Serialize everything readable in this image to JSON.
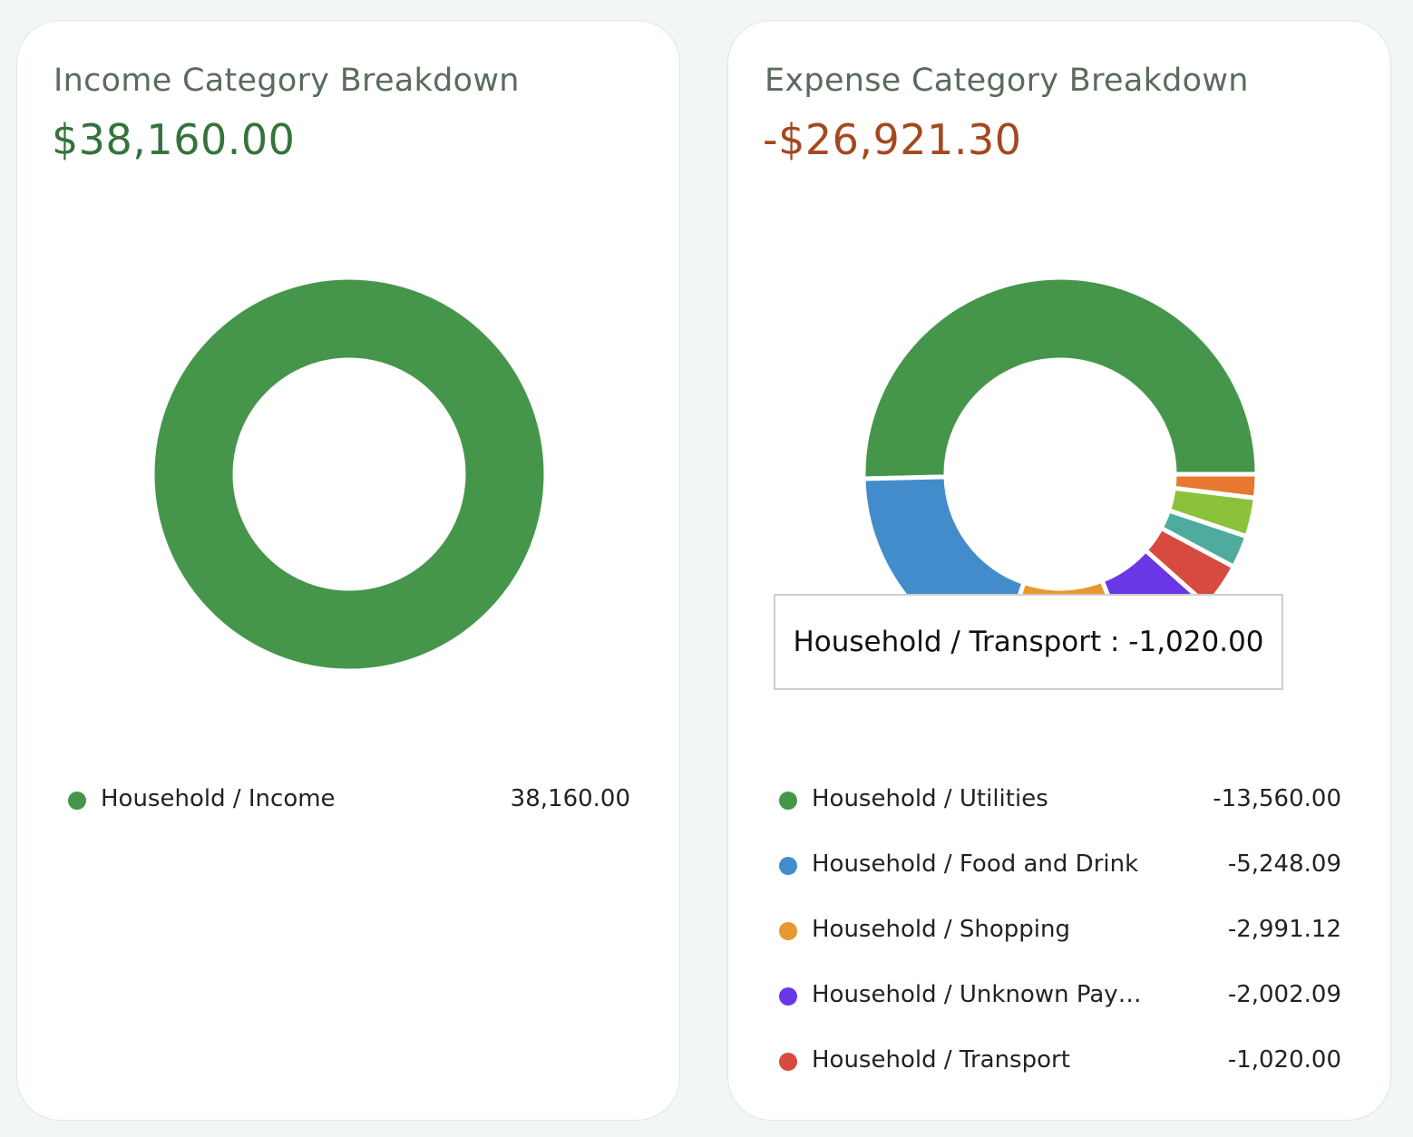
{
  "income": {
    "title": "Income Category Breakdown",
    "total": "$38,160.00",
    "total_color": "#35733c"
  },
  "expense": {
    "title": "Expense Category Breakdown",
    "total": "-$26,921.30",
    "total_color": "#a4481e",
    "tooltip": "Household / Transport : -1,020.00"
  },
  "chart_data": [
    {
      "type": "pie",
      "donut": true,
      "title": "Income Category Breakdown",
      "total": "$38,160.00",
      "categories": [
        "Household / Income"
      ],
      "values": [
        38160.0
      ],
      "value_labels": [
        "38,160.00"
      ],
      "colors": [
        "#45964a"
      ]
    },
    {
      "type": "pie",
      "donut": true,
      "title": "Expense Category Breakdown",
      "total": "-$26,921.30",
      "categories": [
        "Household / Utilities",
        "Household / Food and Drink",
        "Household / Shopping",
        "Household / Unknown Pay…",
        "Household / Transport",
        "",
        "",
        ""
      ],
      "values": [
        -13560.0,
        -5248.09,
        -2991.12,
        -2002.09,
        -1020.0,
        -720,
        -860,
        -520
      ],
      "value_labels": [
        "-13,560.00",
        "-5,248.09",
        "-2,991.12",
        "-2,002.09",
        "-1,020.00",
        "",
        "",
        ""
      ],
      "colors": [
        "#45964a",
        "#428ccc",
        "#e8982f",
        "#6a37e6",
        "#d74a3f",
        "#4fab9e",
        "#8cc23b",
        "#e87830"
      ],
      "legend_count": 5
    }
  ]
}
